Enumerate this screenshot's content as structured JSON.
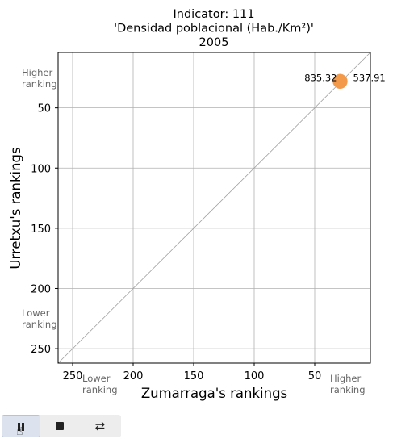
{
  "chart_data": {
    "type": "scatter",
    "title_lines": [
      "Indicator: 111",
      "'Densidad poblacional (Hab./Km²)'",
      "2005"
    ],
    "xlabel": "Zumarraga's rankings",
    "ylabel": "Urretxu's rankings",
    "xlim": [
      262,
      4
    ],
    "ylim": [
      4,
      262
    ],
    "xticks": [
      250,
      200,
      150,
      100,
      50
    ],
    "yticks": [
      50,
      100,
      150,
      200,
      250
    ],
    "grid": true,
    "diagonal": true,
    "corner_labels": {
      "y_high": "Higher\nranking",
      "y_low": "Lower\nranking",
      "x_low": "Lower\nranking",
      "x_high": "Higher\nranking"
    },
    "points": [
      {
        "x": 29,
        "y": 28,
        "label_left": "835.32",
        "label_right": "537.91",
        "color": "#f2994a"
      }
    ]
  },
  "colors": {
    "point": "#f2994a",
    "grid": "#b0b0b0",
    "diagonal": "#a0a0a0"
  },
  "controls": {
    "pause_icon": "pause-icon",
    "stop_icon": "stop-icon",
    "loop_icon": "loop-icon",
    "loop_glyph": "⇄"
  }
}
